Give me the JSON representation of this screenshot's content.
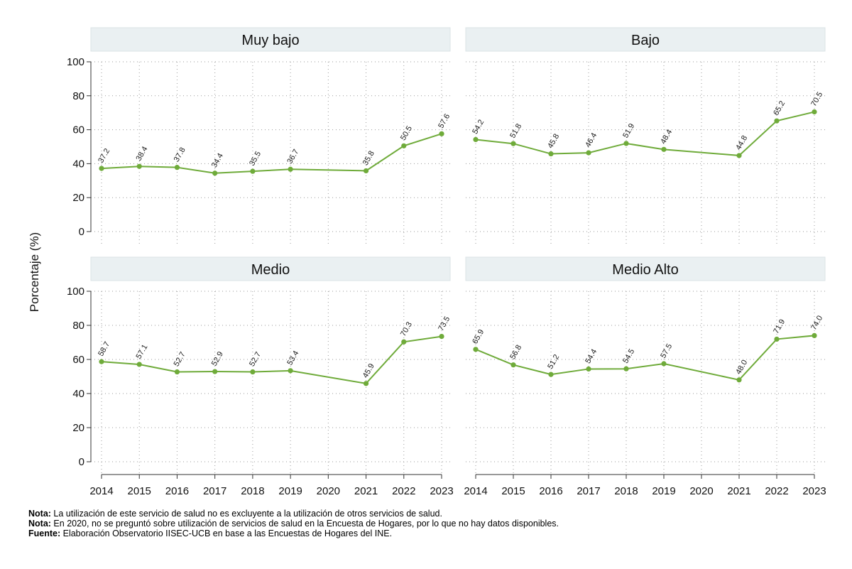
{
  "chart_data": {
    "type": "line",
    "ylabel": "Porcentaje (%)",
    "ylim": [
      0,
      100
    ],
    "yticks": [
      0,
      20,
      40,
      60,
      80,
      100
    ],
    "x": [
      2014,
      2015,
      2016,
      2017,
      2018,
      2019,
      2020,
      2021,
      2022,
      2023
    ],
    "x_tick_labels": [
      "2014",
      "2015",
      "2016",
      "2017",
      "2018",
      "2019",
      "2020",
      "2021",
      "2022",
      "2023"
    ],
    "line_color": "#6fab3a",
    "grid": true,
    "panels": [
      {
        "title": "Muy bajo",
        "values": [
          37.2,
          38.4,
          37.8,
          34.4,
          35.5,
          36.7,
          null,
          35.8,
          50.5,
          57.6
        ],
        "labels": [
          "37.2",
          "38.4",
          "37.8",
          "34.4",
          "35.5",
          "36.7",
          "",
          "35.8",
          "50.5",
          "57.6"
        ]
      },
      {
        "title": "Bajo",
        "values": [
          54.2,
          51.8,
          45.8,
          46.4,
          51.9,
          48.4,
          null,
          44.8,
          65.2,
          70.5
        ],
        "labels": [
          "54.2",
          "51.8",
          "45.8",
          "46.4",
          "51.9",
          "48.4",
          "",
          "44.8",
          "65.2",
          "70.5"
        ]
      },
      {
        "title": "Medio",
        "values": [
          58.7,
          57.1,
          52.7,
          52.9,
          52.7,
          53.4,
          null,
          45.9,
          70.3,
          73.5
        ],
        "labels": [
          "58.7",
          "57.1",
          "52.7",
          "52.9",
          "52.7",
          "53.4",
          "",
          "45.9",
          "70.3",
          "73.5"
        ]
      },
      {
        "title": "Medio Alto",
        "values": [
          65.9,
          56.8,
          51.2,
          54.4,
          54.5,
          57.5,
          null,
          48.0,
          71.9,
          74.0
        ],
        "labels": [
          "65.9",
          "56.8",
          "51.2",
          "54.4",
          "54.5",
          "57.5",
          "",
          "48.0",
          "71.9",
          "74.0"
        ]
      }
    ]
  },
  "notes": [
    {
      "label": "Nota:",
      "text": " La utilización de este servicio de salud no es excluyente a la utilización de otros servicios de salud."
    },
    {
      "label": "Nota:",
      "text": " En 2020, no se preguntó sobre utilización de servicios de salud en la Encuesta de Hogares, por lo que no hay datos disponibles."
    },
    {
      "label": "Fuente:",
      "text": " Elaboración Observatorio IISEC-UCB en base a las Encuestas de Hogares del INE."
    }
  ]
}
